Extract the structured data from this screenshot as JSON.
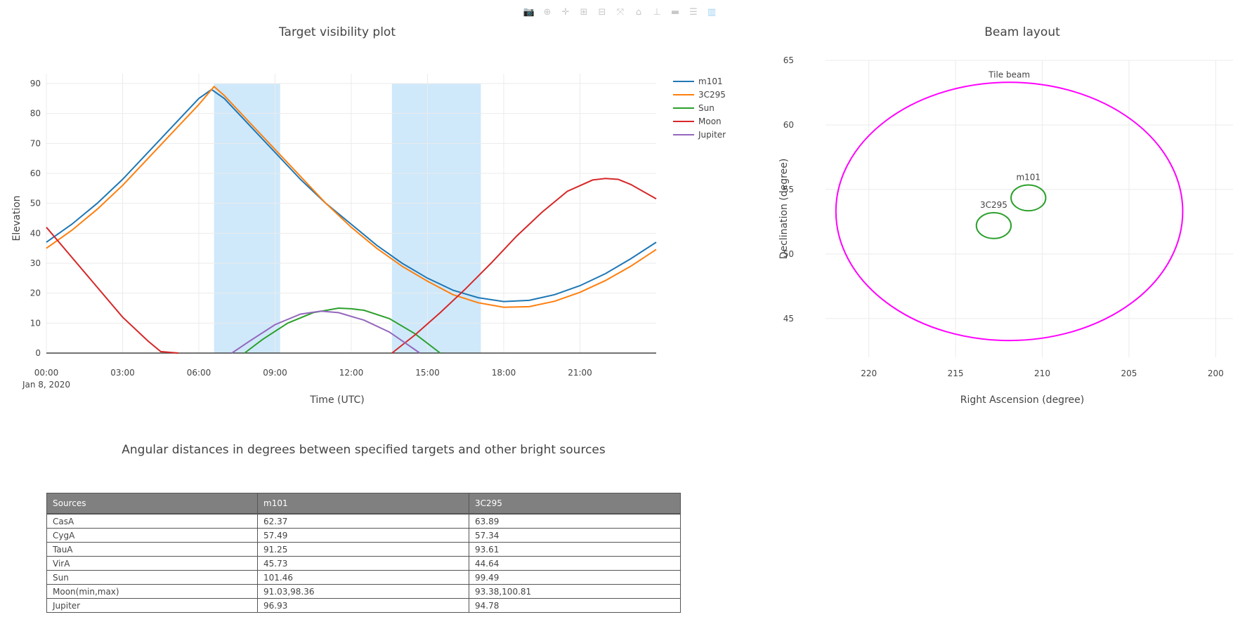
{
  "toolbar": {
    "buttons": [
      {
        "name": "camera-icon",
        "glyph": "📷"
      },
      {
        "name": "zoom-icon",
        "glyph": "⊕"
      },
      {
        "name": "pan-icon",
        "glyph": "✛"
      },
      {
        "name": "zoom-in-icon",
        "glyph": "⊞"
      },
      {
        "name": "zoom-out-icon",
        "glyph": "⊟"
      },
      {
        "name": "autoscale-icon",
        "glyph": "⤧"
      },
      {
        "name": "home-icon",
        "glyph": "⌂"
      },
      {
        "name": "spike-lines-icon",
        "glyph": "⊥"
      },
      {
        "name": "hover-closest-icon",
        "glyph": "▬"
      },
      {
        "name": "hover-compare-icon",
        "glyph": "☰"
      },
      {
        "name": "plotly-logo-icon",
        "glyph": "▥"
      }
    ]
  },
  "chart_data": [
    {
      "type": "line",
      "title": "Target visibility plot",
      "xlabel": "Time (UTC)",
      "ylabel": "Elevation",
      "xlim": [
        0,
        24
      ],
      "ylim": [
        0,
        90
      ],
      "xticks": [
        0,
        3,
        6,
        9,
        12,
        15,
        18,
        21
      ],
      "xtick_labels": [
        "00:00",
        "03:00",
        "06:00",
        "09:00",
        "12:00",
        "15:00",
        "18:00",
        "21:00"
      ],
      "x_date_label": "Jan 8, 2020",
      "yticks": [
        0,
        10,
        20,
        30,
        40,
        50,
        60,
        70,
        80,
        90
      ],
      "grid": true,
      "legend_position": "top-right",
      "shaded_regions": [
        {
          "x0": 6.6,
          "x1": 9.2,
          "y0": 0,
          "y1": 90,
          "color": "#cfe9fb"
        },
        {
          "x0": 13.6,
          "x1": 17.1,
          "y0": 0,
          "y1": 90,
          "color": "#cfe9fb"
        }
      ],
      "series": [
        {
          "name": "m101",
          "color": "#1f77b4",
          "x": [
            0,
            1,
            2,
            3,
            4,
            5,
            6,
            6.5,
            7,
            8,
            9,
            10,
            11,
            12,
            13,
            14,
            15,
            16,
            17,
            18,
            19,
            20,
            21,
            22,
            23,
            24
          ],
          "y": [
            37,
            43,
            50,
            58,
            67,
            76,
            85,
            88,
            85,
            76,
            67,
            58,
            50,
            43,
            36,
            30,
            25,
            21,
            18.5,
            17.2,
            17.6,
            19.5,
            22.5,
            26.5,
            31.5,
            37
          ]
        },
        {
          "name": "3C295",
          "color": "#ff7f0e",
          "x": [
            0,
            1,
            2,
            3,
            4,
            5,
            6,
            6.6,
            7,
            8,
            9,
            10,
            11,
            12,
            13,
            14,
            15,
            16,
            17,
            18,
            19,
            20,
            21,
            22,
            23,
            24
          ],
          "y": [
            35,
            41,
            48,
            56,
            65,
            74,
            83,
            89,
            86,
            77,
            68,
            59,
            50,
            42,
            35,
            29,
            24,
            19.5,
            16.8,
            15.3,
            15.5,
            17.3,
            20.3,
            24.2,
            29,
            34.6
          ]
        },
        {
          "name": "Sun",
          "color": "#2ca02c",
          "x": [
            7.8,
            8.5,
            9.5,
            10.5,
            11.5,
            12,
            12.5,
            13.5,
            14.5,
            15.5
          ],
          "y": [
            0,
            4.5,
            10,
            13.5,
            15,
            14.8,
            14.3,
            11.5,
            6.5,
            0
          ]
        },
        {
          "name": "Moon",
          "color": "#d62728",
          "x": [
            0,
            1,
            2,
            3,
            4,
            4.5,
            5.2
          ],
          "y": [
            42,
            32,
            22,
            12,
            4,
            0.5,
            0
          ]
        },
        {
          "name": "Moon",
          "color": "#d62728",
          "showlegend": false,
          "x": [
            13.6,
            14.5,
            15.5,
            16.5,
            17.5,
            18.5,
            19.5,
            20.5,
            21.5,
            22,
            22.5,
            23,
            24
          ],
          "y": [
            0,
            6,
            13.5,
            21.5,
            30,
            39,
            47,
            54,
            57.8,
            58.3,
            58,
            56.3,
            51.5
          ]
        },
        {
          "name": "Jupiter",
          "color": "#9467bd",
          "x": [
            7.3,
            8,
            9,
            10,
            10.8,
            11.5,
            12.5,
            13.5,
            14.7
          ],
          "y": [
            0,
            4,
            9.5,
            13,
            14,
            13.5,
            11,
            7,
            0
          ]
        }
      ]
    },
    {
      "type": "scatter",
      "title": "Beam layout",
      "xlabel": "Right Ascension (degree)",
      "ylabel": "Declination (degree)",
      "xlim": [
        222.5,
        199
      ],
      "ylim": [
        42,
        65
      ],
      "xticks": [
        220,
        215,
        210,
        205,
        200
      ],
      "yticks": [
        45,
        50,
        55,
        60,
        65
      ],
      "grid": true,
      "shapes": [
        {
          "name": "Tile beam",
          "center": [
            211.9,
            53.3
          ],
          "radius": [
            10,
            10
          ],
          "color": "#ff00ff"
        },
        {
          "name": "m101",
          "center": [
            210.8,
            54.35
          ],
          "radius": [
            1,
            1
          ],
          "color": "#2ca02c"
        },
        {
          "name": "3C295",
          "center": [
            212.8,
            52.2
          ],
          "radius": [
            1,
            1
          ],
          "color": "#2ca02c"
        }
      ]
    }
  ],
  "distance_table": {
    "title": "Angular distances in degrees between specified targets and other bright sources",
    "headers": [
      "Sources",
      "m101",
      "3C295"
    ],
    "rows": [
      [
        "CasA",
        "62.37",
        "63.89"
      ],
      [
        "CygA",
        "57.49",
        "57.34"
      ],
      [
        "TauA",
        "91.25",
        "93.61"
      ],
      [
        "VirA",
        "45.73",
        "44.64"
      ],
      [
        "Sun",
        "101.46",
        "99.49"
      ],
      [
        "Moon(min,max)",
        "91.03,98.36",
        "93.38,100.81"
      ],
      [
        "Jupiter",
        "96.93",
        "94.78"
      ]
    ]
  }
}
